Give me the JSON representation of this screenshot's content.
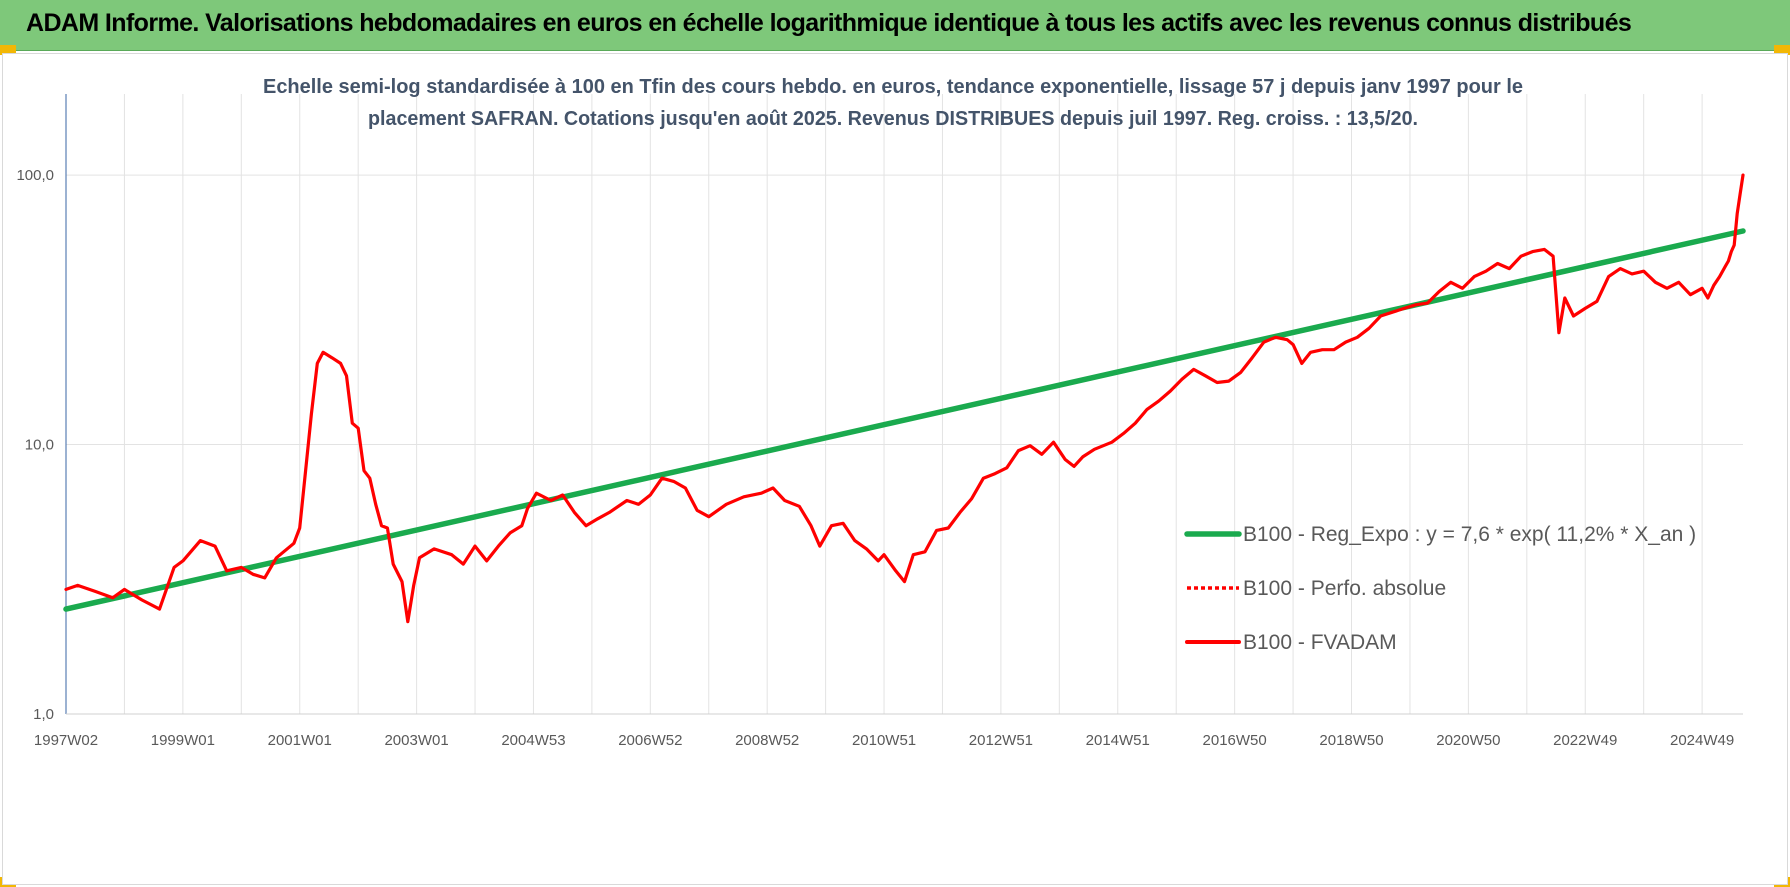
{
  "header": {
    "title": "ADAM Informe. Valorisations hebdomadaires en euros en échelle logarithmique identique à tous les actifs avec les revenus connus distribués"
  },
  "colors": {
    "banner": "#7ec87a",
    "regression": "#1aaa4e",
    "fvadam": "#ff0000",
    "grid": "#e3e3e3",
    "subtitle": "#44546a"
  },
  "chart_data": {
    "type": "line",
    "subtitle_lines": [
      "Echelle semi-log standardisée à 100 en Tfin des cours hebdo. en euros, tendance exponentielle, lissage 57 j depuis janv 1997 pour le",
      "placement SAFRAN. Cotations jusqu'en août 2025. Revenus DISTRIBUES depuis juil 1997. Reg. croiss. : 13,5/20."
    ],
    "y_scale": "log",
    "ylim": [
      1,
      200
    ],
    "xlim": [
      1997.0,
      2025.7
    ],
    "y_ticks": [
      {
        "value": 1,
        "label": "1,0"
      },
      {
        "value": 10,
        "label": "10,0"
      },
      {
        "value": 100,
        "label": "100,0"
      }
    ],
    "x_ticks": [
      {
        "value": 1997.0,
        "label": "1997W02"
      },
      {
        "value": 1999.0,
        "label": "1999W01"
      },
      {
        "value": 2001.0,
        "label": "2001W01"
      },
      {
        "value": 2003.0,
        "label": "2003W01"
      },
      {
        "value": 2005.0,
        "label": "2004W53"
      },
      {
        "value": 2007.0,
        "label": "2006W52"
      },
      {
        "value": 2009.0,
        "label": "2008W52"
      },
      {
        "value": 2011.0,
        "label": "2010W51"
      },
      {
        "value": 2013.0,
        "label": "2012W51"
      },
      {
        "value": 2015.0,
        "label": "2014W51"
      },
      {
        "value": 2017.0,
        "label": "2016W50"
      },
      {
        "value": 2019.0,
        "label": "2018W50"
      },
      {
        "value": 2021.0,
        "label": "2020W50"
      },
      {
        "value": 2023.0,
        "label": "2022W49"
      },
      {
        "value": 2025.0,
        "label": "2024W49"
      }
    ],
    "gridlines": true,
    "legend_position": "right",
    "series": [
      {
        "name": "B100 - Reg_Expo : y = 7,6 * exp( 11,2% *  X_an )",
        "style": "solid",
        "color": "#1aaa4e",
        "points": [
          [
            1997.0,
            2.45
          ],
          [
            2025.7,
            62.0
          ]
        ]
      },
      {
        "name": "B100 - Perfo. absolue",
        "style": "dotted",
        "color": "#ff0000",
        "points": []
      },
      {
        "name": "B100 - FVADAM",
        "style": "solid",
        "color": "#ff0000",
        "points": [
          [
            1997.0,
            2.9
          ],
          [
            1997.2,
            3.0
          ],
          [
            1997.5,
            2.85
          ],
          [
            1997.8,
            2.7
          ],
          [
            1998.0,
            2.9
          ],
          [
            1998.3,
            2.65
          ],
          [
            1998.6,
            2.45
          ],
          [
            1998.85,
            3.5
          ],
          [
            1999.0,
            3.7
          ],
          [
            1999.3,
            4.4
          ],
          [
            1999.55,
            4.2
          ],
          [
            1999.75,
            3.4
          ],
          [
            2000.0,
            3.5
          ],
          [
            2000.2,
            3.3
          ],
          [
            2000.4,
            3.2
          ],
          [
            2000.6,
            3.8
          ],
          [
            2000.9,
            4.3
          ],
          [
            2001.0,
            4.9
          ],
          [
            2001.1,
            8.0
          ],
          [
            2001.2,
            13.0
          ],
          [
            2001.3,
            20.0
          ],
          [
            2001.4,
            22.0
          ],
          [
            2001.55,
            21.0
          ],
          [
            2001.7,
            20.0
          ],
          [
            2001.8,
            18.0
          ],
          [
            2001.9,
            12.0
          ],
          [
            2002.0,
            11.5
          ],
          [
            2002.1,
            8.0
          ],
          [
            2002.2,
            7.5
          ],
          [
            2002.3,
            6.0
          ],
          [
            2002.4,
            5.0
          ],
          [
            2002.5,
            4.9
          ],
          [
            2002.6,
            3.6
          ],
          [
            2002.75,
            3.1
          ],
          [
            2002.85,
            2.2
          ],
          [
            2002.95,
            3.0
          ],
          [
            2003.05,
            3.8
          ],
          [
            2003.3,
            4.1
          ],
          [
            2003.6,
            3.9
          ],
          [
            2003.8,
            3.6
          ],
          [
            2004.0,
            4.2
          ],
          [
            2004.2,
            3.7
          ],
          [
            2004.4,
            4.2
          ],
          [
            2004.6,
            4.7
          ],
          [
            2004.8,
            5.0
          ],
          [
            2004.9,
            5.8
          ],
          [
            2005.05,
            6.6
          ],
          [
            2005.3,
            6.2
          ],
          [
            2005.5,
            6.5
          ],
          [
            2005.7,
            5.6
          ],
          [
            2005.9,
            5.0
          ],
          [
            2006.1,
            5.3
          ],
          [
            2006.3,
            5.6
          ],
          [
            2006.6,
            6.2
          ],
          [
            2006.8,
            6.0
          ],
          [
            2007.0,
            6.5
          ],
          [
            2007.2,
            7.5
          ],
          [
            2007.4,
            7.3
          ],
          [
            2007.6,
            6.9
          ],
          [
            2007.8,
            5.7
          ],
          [
            2008.0,
            5.4
          ],
          [
            2008.3,
            6.0
          ],
          [
            2008.6,
            6.4
          ],
          [
            2008.9,
            6.6
          ],
          [
            2009.1,
            6.9
          ],
          [
            2009.3,
            6.2
          ],
          [
            2009.55,
            5.9
          ],
          [
            2009.75,
            5.0
          ],
          [
            2009.9,
            4.2
          ],
          [
            2010.1,
            5.0
          ],
          [
            2010.3,
            5.1
          ],
          [
            2010.5,
            4.4
          ],
          [
            2010.7,
            4.1
          ],
          [
            2010.9,
            3.7
          ],
          [
            2011.0,
            3.9
          ],
          [
            2011.2,
            3.4
          ],
          [
            2011.35,
            3.1
          ],
          [
            2011.5,
            3.9
          ],
          [
            2011.7,
            4.0
          ],
          [
            2011.9,
            4.8
          ],
          [
            2012.1,
            4.9
          ],
          [
            2012.3,
            5.6
          ],
          [
            2012.5,
            6.3
          ],
          [
            2012.7,
            7.5
          ],
          [
            2012.9,
            7.8
          ],
          [
            2013.1,
            8.2
          ],
          [
            2013.3,
            9.5
          ],
          [
            2013.5,
            9.9
          ],
          [
            2013.7,
            9.2
          ],
          [
            2013.9,
            10.2
          ],
          [
            2014.1,
            8.8
          ],
          [
            2014.25,
            8.3
          ],
          [
            2014.4,
            9.0
          ],
          [
            2014.6,
            9.6
          ],
          [
            2014.9,
            10.2
          ],
          [
            2015.1,
            11.0
          ],
          [
            2015.3,
            12.0
          ],
          [
            2015.5,
            13.5
          ],
          [
            2015.7,
            14.5
          ],
          [
            2015.9,
            15.8
          ],
          [
            2016.1,
            17.5
          ],
          [
            2016.3,
            19.0
          ],
          [
            2016.5,
            18.0
          ],
          [
            2016.7,
            17.0
          ],
          [
            2016.9,
            17.2
          ],
          [
            2017.1,
            18.5
          ],
          [
            2017.3,
            21.0
          ],
          [
            2017.5,
            24.0
          ],
          [
            2017.7,
            25.0
          ],
          [
            2017.9,
            24.5
          ],
          [
            2018.0,
            23.5
          ],
          [
            2018.15,
            20.0
          ],
          [
            2018.3,
            22.0
          ],
          [
            2018.5,
            22.5
          ],
          [
            2018.7,
            22.5
          ],
          [
            2018.9,
            24.0
          ],
          [
            2019.1,
            25.0
          ],
          [
            2019.3,
            27.0
          ],
          [
            2019.5,
            30.0
          ],
          [
            2019.7,
            31.0
          ],
          [
            2019.9,
            32.0
          ],
          [
            2020.1,
            33.0
          ],
          [
            2020.3,
            33.5
          ],
          [
            2020.5,
            37.0
          ],
          [
            2020.7,
            40.0
          ],
          [
            2020.9,
            38.0
          ],
          [
            2021.1,
            42.0
          ],
          [
            2021.3,
            44.0
          ],
          [
            2021.5,
            47.0
          ],
          [
            2021.7,
            45.0
          ],
          [
            2021.9,
            50.0
          ],
          [
            2022.1,
            52.0
          ],
          [
            2022.3,
            53.0
          ],
          [
            2022.45,
            50.0
          ],
          [
            2022.55,
            26.0
          ],
          [
            2022.65,
            35.0
          ],
          [
            2022.8,
            30.0
          ],
          [
            2023.0,
            32.0
          ],
          [
            2023.2,
            34.0
          ],
          [
            2023.4,
            42.0
          ],
          [
            2023.6,
            45.0
          ],
          [
            2023.8,
            43.0
          ],
          [
            2024.0,
            44.0
          ],
          [
            2024.2,
            40.0
          ],
          [
            2024.4,
            38.0
          ],
          [
            2024.6,
            40.0
          ],
          [
            2024.8,
            36.0
          ],
          [
            2025.0,
            38.0
          ],
          [
            2025.1,
            35.0
          ],
          [
            2025.2,
            39.0
          ],
          [
            2025.3,
            42.0
          ],
          [
            2025.4,
            46.0
          ],
          [
            2025.45,
            48.0
          ],
          [
            2025.5,
            52.0
          ],
          [
            2025.55,
            55.0
          ],
          [
            2025.6,
            72.0
          ],
          [
            2025.65,
            85.0
          ],
          [
            2025.7,
            100.0
          ]
        ]
      }
    ]
  }
}
